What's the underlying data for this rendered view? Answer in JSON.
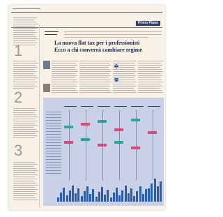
{
  "header": {
    "section": "Primo Piano"
  },
  "headline": {
    "line1": "La nuova flat tax per i professionisti",
    "line2": "Ecco a chi converrà cambiare regime"
  },
  "sidebar": {
    "numbers": [
      "1",
      "2",
      "3"
    ]
  }
}
